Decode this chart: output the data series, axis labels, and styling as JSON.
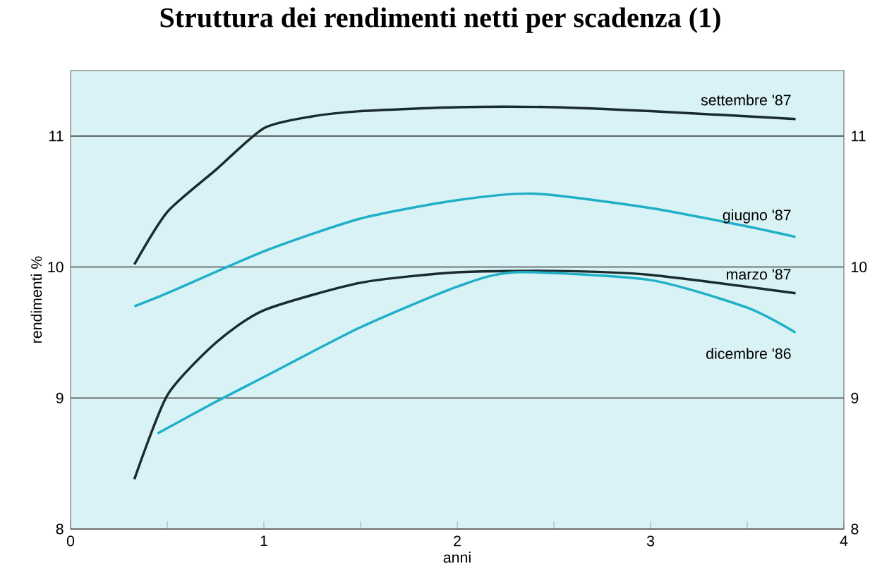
{
  "chart_data": {
    "type": "line",
    "title": "Struttura dei rendimenti netti per scadenza (1)",
    "xlabel": "anni",
    "ylabel": "rendimenti %",
    "xlim": [
      0,
      4
    ],
    "xticks": [
      0,
      {
        "value": 0.5,
        "label": null
      },
      1,
      {
        "value": 1.5,
        "label": null
      },
      2,
      {
        "value": 2.5,
        "label": null
      },
      3,
      {
        "value": 3.5,
        "label": null
      },
      4
    ],
    "ylim": [
      8,
      11.5
    ],
    "yticks": [
      8,
      9,
      10,
      11
    ],
    "y2lim": [
      8,
      11.5
    ],
    "y2ticks": [
      8,
      9,
      10,
      11
    ],
    "grid": "y",
    "legend": false,
    "marker": "none",
    "line_style": "solid",
    "series": [
      {
        "name": "settembre '87",
        "color": "#1a2b2e",
        "x": [
          0.33,
          0.5,
          0.75,
          1,
          1.25,
          1.5,
          2,
          2.5,
          3,
          3.75
        ],
        "values": [
          10.02,
          10.42,
          10.74,
          11.06,
          11.15,
          11.19,
          11.22,
          11.22,
          11.19,
          11.13
        ]
      },
      {
        "name": "giugno '87",
        "color": "#1fb0c8",
        "x": [
          0.33,
          0.5,
          1,
          1.5,
          2,
          2.4,
          3,
          3.5,
          3.75
        ],
        "values": [
          9.7,
          9.8,
          10.12,
          10.37,
          10.51,
          10.56,
          10.45,
          10.31,
          10.23
        ]
      },
      {
        "name": "marzo '87",
        "color": "#1a2b2e",
        "x": [
          0.33,
          0.5,
          0.75,
          1,
          1.5,
          2,
          2.5,
          3,
          3.75
        ],
        "values": [
          8.38,
          9.02,
          9.42,
          9.67,
          9.88,
          9.96,
          9.97,
          9.94,
          9.8
        ]
      },
      {
        "name": "dicembre '86",
        "color": "#1fb0c8",
        "x": [
          0.45,
          0.75,
          1,
          1.5,
          2,
          2.3,
          3,
          3.5,
          3.75
        ],
        "values": [
          8.73,
          8.97,
          9.16,
          9.54,
          9.85,
          9.96,
          9.9,
          9.69,
          9.5
        ]
      }
    ]
  }
}
